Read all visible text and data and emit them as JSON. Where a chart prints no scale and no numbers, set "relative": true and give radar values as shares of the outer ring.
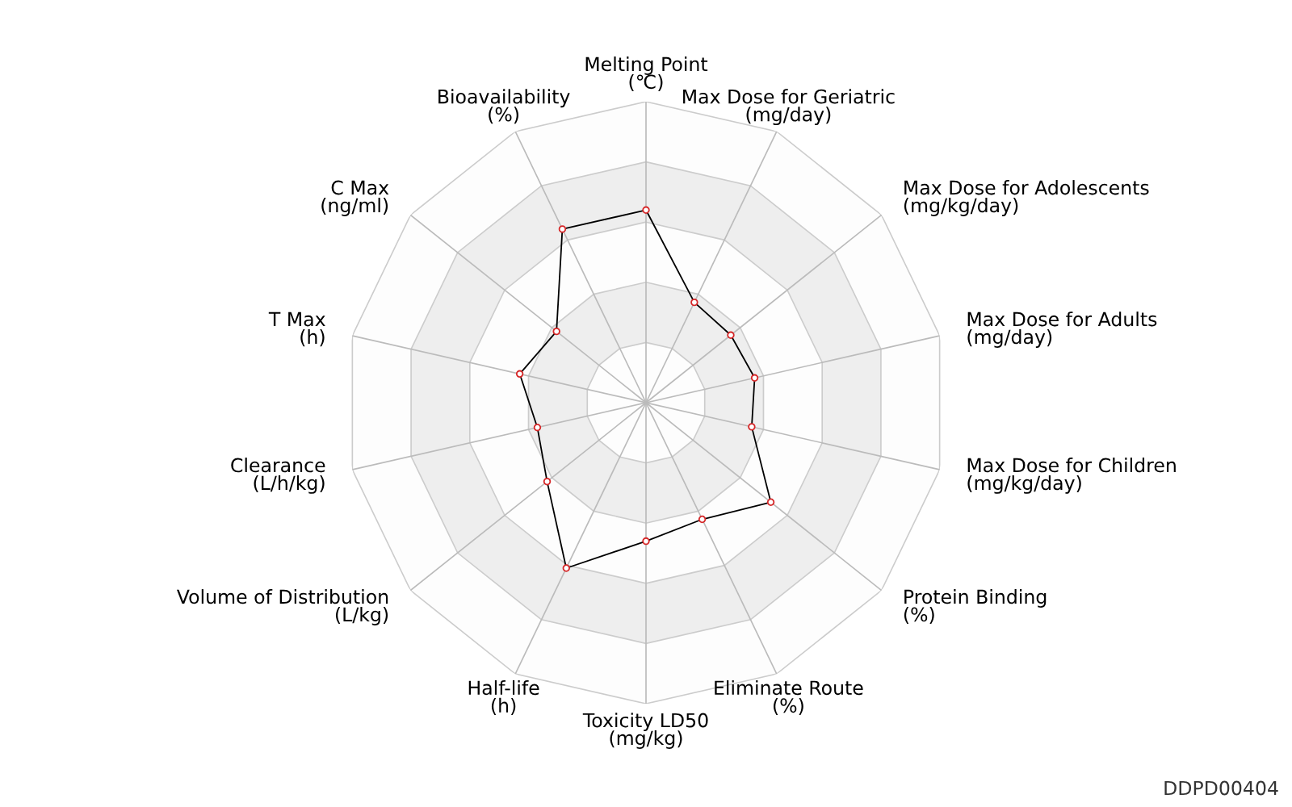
{
  "chart_data": {
    "type": "radar",
    "relative": true,
    "marker": "circle",
    "grid": true,
    "categories": [
      "Melting Point\n(℃)",
      "Max Dose for Geriatric\n(mg/day)",
      "Max Dose for Adolescents\n(mg/kg/day)",
      "Max Dose for Adults\n(mg/day)",
      "Max Dose for Children\n(mg/kg/day)",
      "Protein Binding\n(%)",
      "Eliminate Route\n(%)",
      "Toxicity LD50\n(mg/kg)",
      "Half-life\n(h)",
      "Volume of Distribution\n(L/kg)",
      "Clearance\n(L/h/kg)",
      "T Max\n(h)",
      "C Max\n(ng/ml)",
      "Bioavailability\n(%)"
    ],
    "series": [
      {
        "color": "#000000",
        "values": [
          0.64,
          0.37,
          0.36,
          0.37,
          0.36,
          0.53,
          0.43,
          0.46,
          0.61,
          0.42,
          0.37,
          0.43,
          0.38,
          0.64
        ]
      }
    ],
    "annotations": [
      "DDPD00404"
    ]
  }
}
